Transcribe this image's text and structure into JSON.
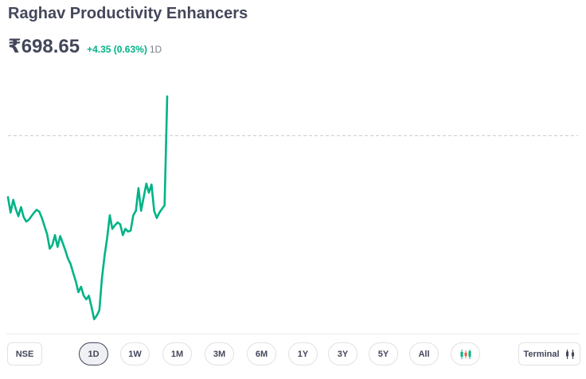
{
  "stock": {
    "name": "Raghav Productivity Enhancers",
    "price": "₹698.65",
    "change": "+4.35 (0.63%)",
    "period": "1D"
  },
  "colors": {
    "line": "#00b386",
    "baseline": "#c8cad2",
    "text": "#44475b",
    "positive": "#00b386"
  },
  "chart_data": {
    "type": "line",
    "series": [
      {
        "values": [
          687.5,
          685.8,
          687.2,
          686.2,
          685.4,
          686.4,
          685.3,
          684.8,
          685.0,
          685.4,
          685.8,
          686.1,
          685.9,
          685.2,
          684.3,
          683.4,
          681.8,
          682.2,
          683.3,
          682.0,
          683.2,
          682.4,
          681.6,
          680.7,
          680.1,
          679.1,
          678.2,
          677.0,
          677.6,
          676.6,
          676.2,
          676.6,
          675.4,
          674.0,
          674.4,
          675.0,
          678.5,
          681.0,
          683.0,
          685.5,
          684.0,
          684.4,
          684.7,
          684.5,
          683.3,
          684.0,
          683.7,
          683.8,
          685.5,
          686.0,
          688.5,
          686.0,
          687.5,
          689.0,
          688.0,
          688.9,
          686.0,
          685.2,
          685.8,
          686.2,
          686.6,
          698.65
        ]
      }
    ],
    "previous_close": 694.3,
    "ylim": [
      672.5,
      700.5
    ],
    "grid": false
  },
  "toolbar": {
    "exchange": "NSE",
    "ranges": [
      "1D",
      "1W",
      "1M",
      "3M",
      "6M",
      "1Y",
      "3Y",
      "5Y",
      "All"
    ],
    "active_range": "1D",
    "terminal_label": "Terminal"
  }
}
